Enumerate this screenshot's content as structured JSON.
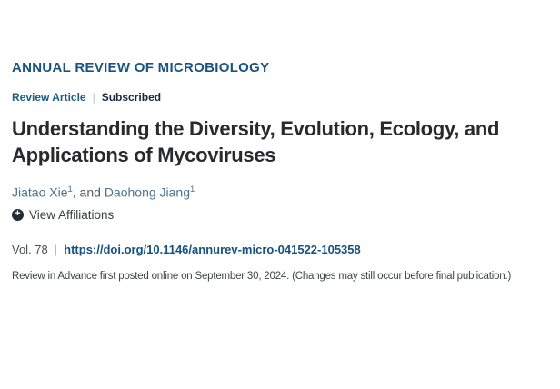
{
  "header": {
    "journal_name": "ANNUAL REVIEW OF MICROBIOLOGY",
    "article_type": "Review Article",
    "separator": "|",
    "access_status": "Subscribed"
  },
  "title": {
    "full": "Understanding the Diversity, Evolution, Ecology, and Applications of Mycoviruses",
    "lines": [
      "Understanding the Diversity, Evolution, Ecology, and",
      "Applications of Mycoviruses"
    ]
  },
  "authors": {
    "joiner": ", and ",
    "list": [
      {
        "name": "Jiatao Xie",
        "affiliation_ref": "1"
      },
      {
        "name": "Daohong Jiang",
        "affiliation_ref": "1"
      }
    ]
  },
  "affiliations": {
    "icon_glyph": "+",
    "label": "View Affiliations"
  },
  "citation": {
    "volume": "Vol. 78",
    "doi_url": "https://doi.org/10.1146/annurev-micro-041522-105358",
    "advance_notice": "Review in Advance first posted online on September 30, 2024. (Changes may still occur before final publication.)"
  },
  "colors": {
    "journal_name": "#19537E",
    "article_type": "#1C5E85",
    "access_status": "#16293D",
    "title": "#292A2D",
    "author_link": "#4C7390",
    "author_joiner": "#56595E",
    "view_affiliations_text": "#3A3F46",
    "plus_icon_background": "#232B33",
    "plus_icon_glyph": "#FFFFFF",
    "volume_text": "#4B4F54",
    "doi_link": "#15517F",
    "separator": "#A9BDC9",
    "advance_notice": "#3F444A",
    "background": "#FFFFFF"
  }
}
